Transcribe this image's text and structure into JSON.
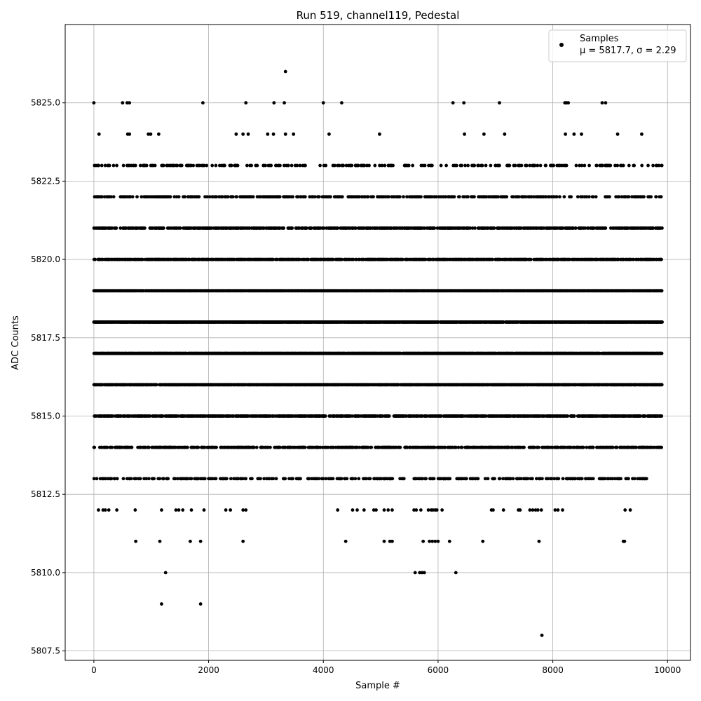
{
  "chart_data": {
    "type": "scatter",
    "title": "Run 519, channel119, Pedestal",
    "xlabel": "Sample #",
    "ylabel": "ADC Counts",
    "xlim": [
      -500,
      10400
    ],
    "ylim": [
      5807.2,
      5827.5
    ],
    "xticks": [
      0,
      2000,
      4000,
      6000,
      8000,
      10000
    ],
    "xtick_labels": [
      "0",
      "2000",
      "4000",
      "6000",
      "8000",
      "10000"
    ],
    "yticks": [
      5807.5,
      5810.0,
      5812.5,
      5815.0,
      5817.5,
      5820.0,
      5822.5,
      5825.0
    ],
    "ytick_labels": [
      "5807.5",
      "5810.0",
      "5812.5",
      "5815.0",
      "5817.5",
      "5820.0",
      "5822.5",
      "5825.0"
    ],
    "grid": true,
    "legend_position": "top-right",
    "series": [
      {
        "name": "Samples",
        "color": "#000000",
        "levels": [
          {
            "y": 5819,
            "x_ranges": [
              [
                0,
                9900
              ]
            ],
            "density": 0.92
          },
          {
            "y": 5818,
            "x_ranges": [
              [
                0,
                9900
              ]
            ],
            "density": 0.92
          },
          {
            "y": 5817,
            "x_ranges": [
              [
                0,
                9900
              ]
            ],
            "density": 0.92
          },
          {
            "y": 5816,
            "x_ranges": [
              [
                0,
                9900
              ]
            ],
            "density": 0.85
          },
          {
            "y": 5820,
            "x_ranges": [
              [
                0,
                9900
              ]
            ],
            "density": 0.62
          },
          {
            "y": 5815,
            "x_ranges": [
              [
                0,
                9900
              ]
            ],
            "density": 0.6
          },
          {
            "y": 5821,
            "x_ranges": [
              [
                0,
                9900
              ]
            ],
            "density": 0.5
          },
          {
            "y": 5814,
            "x_ranges": [
              [
                0,
                9900
              ]
            ],
            "density": 0.45
          },
          {
            "y": 5822,
            "x_ranges": [
              [
                0,
                9900
              ]
            ],
            "density": 0.35
          },
          {
            "y": 5813,
            "x_ranges": [
              [
                0,
                9700
              ]
            ],
            "density": 0.28
          },
          {
            "y": 5823,
            "x_ranges": [
              [
                0,
                9900
              ]
            ],
            "density": 0.22
          }
        ],
        "points": [
          [
            0,
            5825
          ],
          [
            90,
            5824
          ],
          [
            500,
            5825
          ],
          [
            580,
            5825
          ],
          [
            620,
            5825
          ],
          [
            590,
            5824
          ],
          [
            620,
            5824
          ],
          [
            950,
            5824
          ],
          [
            990,
            5824
          ],
          [
            1130,
            5824
          ],
          [
            1900,
            5825
          ],
          [
            2480,
            5824
          ],
          [
            2600,
            5824
          ],
          [
            2650,
            5825
          ],
          [
            2690,
            5824
          ],
          [
            3030,
            5824
          ],
          [
            3130,
            5824
          ],
          [
            3140,
            5825
          ],
          [
            3320,
            5825
          ],
          [
            3340,
            5824
          ],
          [
            3480,
            5824
          ],
          [
            3340,
            5826
          ],
          [
            4000,
            5825
          ],
          [
            4100,
            5824
          ],
          [
            4320,
            5825
          ],
          [
            4980,
            5824
          ],
          [
            6260,
            5825
          ],
          [
            6450,
            5825
          ],
          [
            6460,
            5824
          ],
          [
            6800,
            5824
          ],
          [
            7070,
            5825
          ],
          [
            7160,
            5824
          ],
          [
            8210,
            5825
          ],
          [
            8240,
            5825
          ],
          [
            8270,
            5825
          ],
          [
            8220,
            5824
          ],
          [
            8370,
            5824
          ],
          [
            8500,
            5824
          ],
          [
            8860,
            5825
          ],
          [
            8920,
            5825
          ],
          [
            9130,
            5824
          ],
          [
            9550,
            5824
          ],
          [
            80,
            5812
          ],
          [
            160,
            5812
          ],
          [
            200,
            5812
          ],
          [
            260,
            5812
          ],
          [
            400,
            5812
          ],
          [
            720,
            5812
          ],
          [
            1180,
            5812
          ],
          [
            1430,
            5812
          ],
          [
            1480,
            5812
          ],
          [
            1550,
            5812
          ],
          [
            1700,
            5812
          ],
          [
            1920,
            5812
          ],
          [
            2300,
            5812
          ],
          [
            2380,
            5812
          ],
          [
            2600,
            5812
          ],
          [
            2650,
            5812
          ],
          [
            4250,
            5812
          ],
          [
            4510,
            5812
          ],
          [
            4590,
            5812
          ],
          [
            4710,
            5812
          ],
          [
            4880,
            5812
          ],
          [
            4920,
            5812
          ],
          [
            5060,
            5812
          ],
          [
            5130,
            5812
          ],
          [
            5200,
            5812
          ],
          [
            5580,
            5812
          ],
          [
            5620,
            5812
          ],
          [
            5700,
            5812
          ],
          [
            5830,
            5812
          ],
          [
            5880,
            5812
          ],
          [
            5910,
            5812
          ],
          [
            5950,
            5812
          ],
          [
            5980,
            5812
          ],
          [
            6070,
            5812
          ],
          [
            6930,
            5812
          ],
          [
            6960,
            5812
          ],
          [
            7140,
            5812
          ],
          [
            7400,
            5812
          ],
          [
            7430,
            5812
          ],
          [
            7600,
            5812
          ],
          [
            7650,
            5812
          ],
          [
            7700,
            5812
          ],
          [
            7740,
            5812
          ],
          [
            7800,
            5812
          ],
          [
            8040,
            5812
          ],
          [
            8090,
            5812
          ],
          [
            8170,
            5812
          ],
          [
            9260,
            5812
          ],
          [
            9350,
            5812
          ],
          [
            730,
            5811
          ],
          [
            1150,
            5811
          ],
          [
            1680,
            5811
          ],
          [
            1860,
            5811
          ],
          [
            2600,
            5811
          ],
          [
            4390,
            5811
          ],
          [
            5060,
            5811
          ],
          [
            5160,
            5811
          ],
          [
            5200,
            5811
          ],
          [
            5740,
            5811
          ],
          [
            5850,
            5811
          ],
          [
            5900,
            5811
          ],
          [
            5950,
            5811
          ],
          [
            6000,
            5811
          ],
          [
            6200,
            5811
          ],
          [
            6780,
            5811
          ],
          [
            7760,
            5811
          ],
          [
            9230,
            5811
          ],
          [
            9250,
            5811
          ],
          [
            1250,
            5810
          ],
          [
            5600,
            5810
          ],
          [
            5680,
            5810
          ],
          [
            5720,
            5810
          ],
          [
            5760,
            5810
          ],
          [
            6310,
            5810
          ],
          [
            1180,
            5809
          ],
          [
            1860,
            5809
          ],
          [
            7810,
            5808
          ]
        ]
      }
    ],
    "legend": {
      "series_label": "Samples",
      "stats_label": "μ = 5817.7, σ = 2.29"
    }
  }
}
